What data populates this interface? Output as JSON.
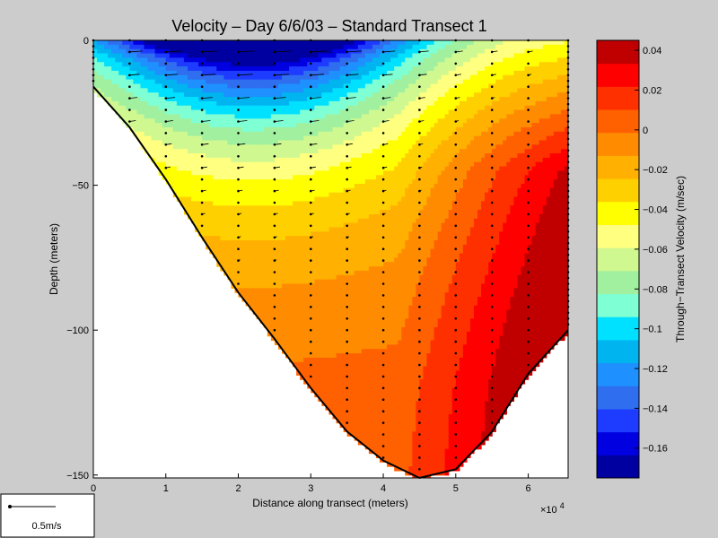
{
  "chart_data": {
    "type": "heatmap",
    "title": "Velocity – Day 6/6/03 – Standard Transect 1",
    "xlabel": "Distance along transect (meters)",
    "ylabel": "Depth (meters)",
    "x_multiplier": "×10",
    "x_multiplier_exp": "4",
    "xlim": [
      0,
      65500
    ],
    "ylim": [
      -151,
      0
    ],
    "x_ticks": [
      0,
      10000,
      20000,
      30000,
      40000,
      50000,
      60000
    ],
    "x_tick_labels": [
      "0",
      "1",
      "2",
      "3",
      "4",
      "5",
      "6"
    ],
    "y_ticks": [
      0,
      -50,
      -100,
      -150
    ],
    "y_tick_labels": [
      "0",
      "−50",
      "−100",
      "−150"
    ],
    "colorbar": {
      "label": "Through−Transect Velocity (m/sec)",
      "range": [
        -0.175,
        0.045
      ],
      "ticks": [
        0.04,
        0.02,
        0,
        -0.02,
        -0.04,
        -0.06,
        -0.08,
        -0.1,
        -0.12,
        -0.14,
        -0.16
      ],
      "tick_labels": [
        "0.04",
        "0.02",
        "0",
        "−0.02",
        "−0.04",
        "−0.06",
        "−0.08",
        "−0.1",
        "−0.12",
        "−0.14",
        "−0.16"
      ],
      "colors": [
        "#0000a0",
        "#0000e0",
        "#1e3cff",
        "#2f6eef",
        "#1e90ff",
        "#00b4f0",
        "#00e0ff",
        "#7fffd4",
        "#a0f0a0",
        "#d0f890",
        "#ffff80",
        "#ffff00",
        "#ffd000",
        "#ffb000",
        "#ff8c00",
        "#ff6000",
        "#ff3000",
        "#ff0000",
        "#c00000"
      ]
    },
    "bottom_profile": {
      "x": [
        0,
        5000,
        10000,
        15000,
        20000,
        25000,
        30000,
        35000,
        40000,
        45000,
        50000,
        55000,
        60000,
        65500
      ],
      "depth": [
        -16,
        -30,
        -48,
        -68,
        -87,
        -103,
        -120,
        -135,
        -145,
        -151,
        -148,
        -135,
        -115,
        -100
      ]
    },
    "scale_legend": {
      "label": "0.5m/s"
    }
  }
}
